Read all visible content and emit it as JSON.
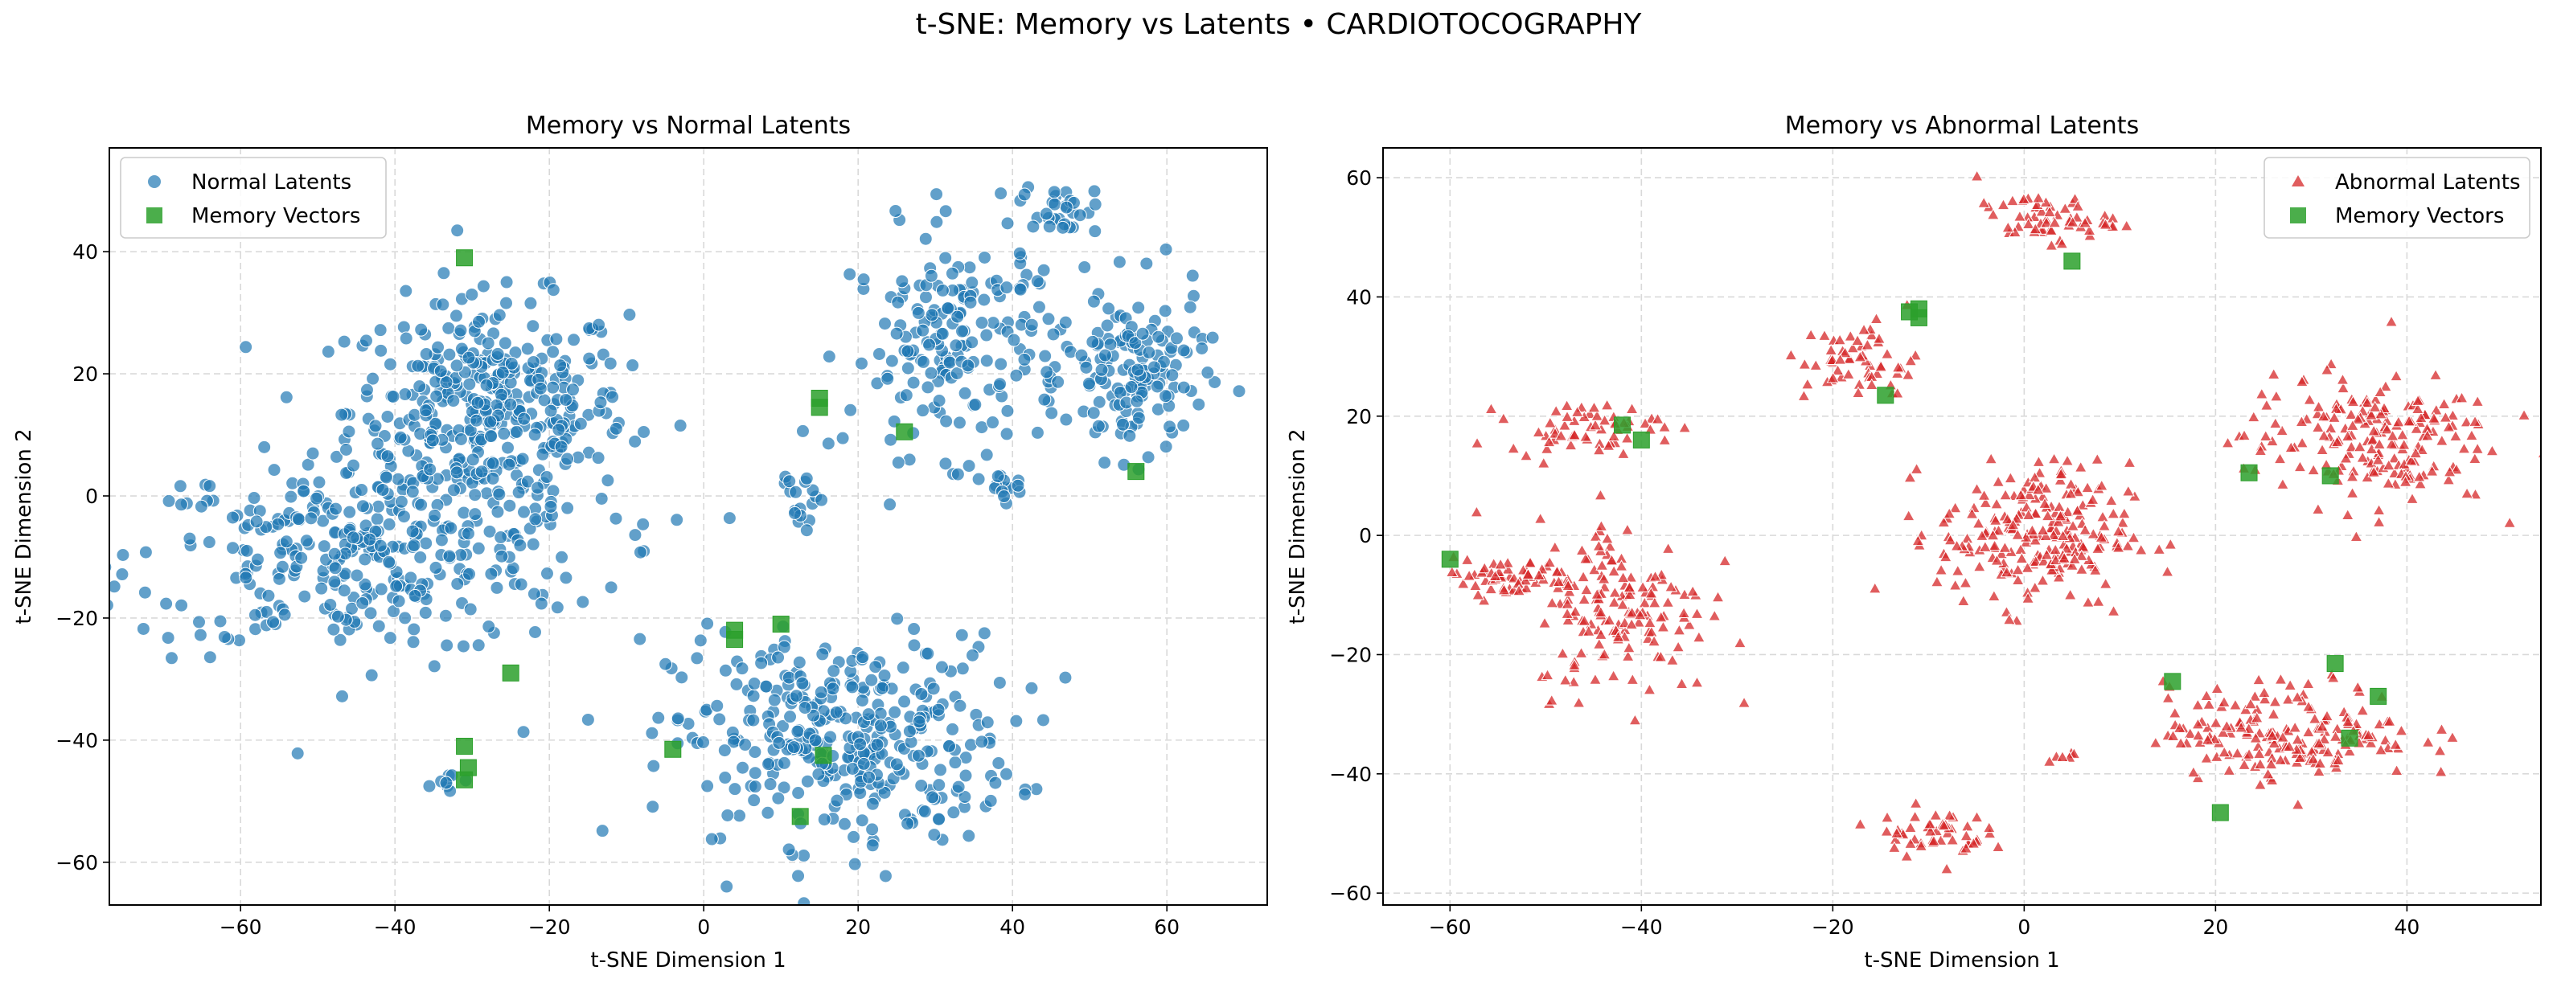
{
  "figure": {
    "title": "t-SNE: Memory vs Latents • CARDIOTOCOGRAPHY"
  },
  "chart_data": [
    {
      "type": "scatter",
      "title": "Memory vs Normal Latents",
      "xlabel": "t-SNE Dimension 1",
      "ylabel": "t-SNE Dimension 2",
      "xlim": [
        -77,
        73
      ],
      "ylim": [
        -67,
        57
      ],
      "xticks": [
        -60,
        -40,
        -20,
        0,
        20,
        40,
        60
      ],
      "yticks": [
        -60,
        -40,
        -20,
        0,
        20,
        40
      ],
      "grid": true,
      "legend_position": "top-left",
      "series": [
        {
          "name": "Normal Latents",
          "marker": "circle",
          "color": "#1f77b4",
          "clusters": [
            {
              "cx": -28,
              "cy": 14,
              "rx": 18,
              "ry": 18,
              "n": 390
            },
            {
              "cx": -44,
              "cy": -10,
              "rx": 30,
              "ry": 16,
              "n": 330
            },
            {
              "cx": 18,
              "cy": -40,
              "rx": 22,
              "ry": 17,
              "n": 360
            },
            {
              "cx": 33,
              "cy": 25,
              "rx": 14,
              "ry": 18,
              "n": 190
            },
            {
              "cx": 56,
              "cy": 20,
              "rx": 9,
              "ry": 14,
              "n": 140
            },
            {
              "cx": 46,
              "cy": 47,
              "rx": 5,
              "ry": 4,
              "n": 30
            },
            {
              "cx": 13,
              "cy": 2,
              "rx": 3,
              "ry": 11,
              "n": 20
            },
            {
              "cx": 39,
              "cy": 1,
              "rx": 3,
              "ry": 3,
              "n": 12
            },
            {
              "cx": -33,
              "cy": -46,
              "rx": 2,
              "ry": 2,
              "n": 8
            }
          ]
        },
        {
          "name": "Memory Vectors",
          "marker": "square",
          "color": "#2ca02c",
          "points": [
            [
              -31,
              39
            ],
            [
              15,
              16
            ],
            [
              15,
              14.5
            ],
            [
              26,
              10.5
            ],
            [
              56,
              4
            ],
            [
              -25,
              -29
            ],
            [
              4,
              -22
            ],
            [
              4,
              -23.5
            ],
            [
              10,
              -21
            ],
            [
              -4,
              -41.5
            ],
            [
              15.5,
              -42.5
            ],
            [
              12.5,
              -52.5
            ],
            [
              -31,
              -41
            ],
            [
              -30.5,
              -44.5
            ],
            [
              -31,
              -46.5
            ]
          ]
        }
      ]
    },
    {
      "type": "scatter",
      "title": "Memory vs Abnormal Latents",
      "xlabel": "t-SNE Dimension 1",
      "ylabel": "t-SNE Dimension 2",
      "xlim": [
        -67,
        54
      ],
      "ylim": [
        -62,
        65
      ],
      "xticks": [
        -60,
        -40,
        -20,
        0,
        20,
        40
      ],
      "yticks": [
        -60,
        -40,
        -20,
        0,
        20,
        40,
        60
      ],
      "grid": true,
      "legend_position": "top-right",
      "series": [
        {
          "name": "Abnormal Latents",
          "marker": "triangle",
          "color": "#d62728",
          "clusters": [
            {
              "cx": 1,
              "cy": 0,
              "rx": 10,
              "ry": 12,
              "n": 240
            },
            {
              "cx": -42,
              "cy": -12,
              "rx": 9,
              "ry": 15,
              "n": 160
            },
            {
              "cx": -54,
              "cy": -7,
              "rx": 8,
              "ry": 3,
              "n": 60
            },
            {
              "cx": -46,
              "cy": 18,
              "rx": 8,
              "ry": 4,
              "n": 60
            },
            {
              "cx": -17,
              "cy": 29,
              "rx": 6,
              "ry": 7,
              "n": 60
            },
            {
              "cx": 2,
              "cy": 53,
              "rx": 7,
              "ry": 4,
              "n": 60
            },
            {
              "cx": 36,
              "cy": 16,
              "rx": 13,
              "ry": 11,
              "n": 200
            },
            {
              "cx": 28,
              "cy": -33,
              "rx": 13,
              "ry": 8,
              "n": 190
            },
            {
              "cx": -10,
              "cy": -50,
              "rx": 6,
              "ry": 4,
              "n": 50
            },
            {
              "cx": 4,
              "cy": -37,
              "rx": 2,
              "ry": 1,
              "n": 6
            }
          ]
        },
        {
          "name": "Memory Vectors",
          "marker": "square",
          "color": "#2ca02c",
          "points": [
            [
              -60,
              -4
            ],
            [
              -42,
              18.5
            ],
            [
              -40,
              16
            ],
            [
              -14.5,
              23.5
            ],
            [
              -12,
              37.5
            ],
            [
              -11,
              36.5
            ],
            [
              -11,
              38
            ],
            [
              5,
              46
            ],
            [
              23.5,
              10.5
            ],
            [
              32,
              10
            ],
            [
              15.5,
              -24.5
            ],
            [
              32.5,
              -21.5
            ],
            [
              37,
              -27
            ],
            [
              34,
              -34
            ],
            [
              20.5,
              -46.5
            ]
          ]
        }
      ]
    }
  ]
}
